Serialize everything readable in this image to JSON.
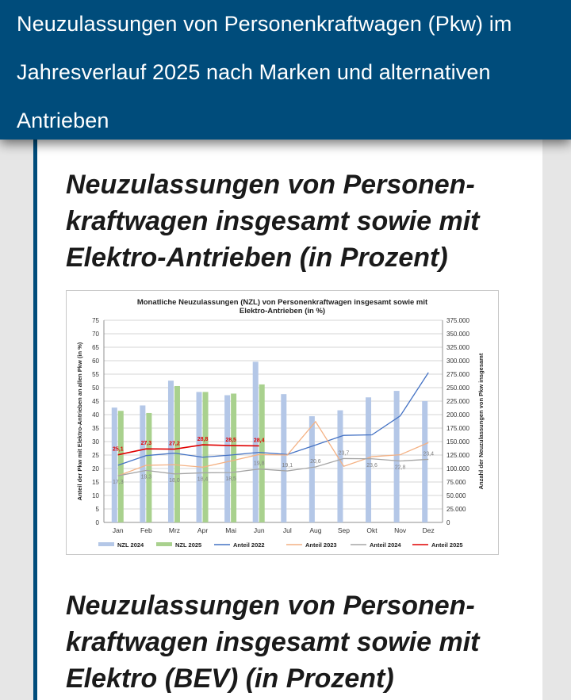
{
  "header": {
    "title": "Neuzulassungen von Personenkraftwagen (Pkw) im Jahresverlauf 2025 nach Marken und alternativen Antrieben"
  },
  "sections": [
    {
      "title_lines": [
        "Neuzulassungen von Personen-",
        "kraftwagen insgesamt sowie mit",
        "Elektro-Antrieben (in Prozent)"
      ]
    },
    {
      "title_lines": [
        "Neuzulassungen von Personen-",
        "kraftwagen insgesamt sowie mit",
        "Elektro (BEV) (in Prozent)"
      ]
    }
  ],
  "colors": {
    "header_bg": "#004c7b",
    "nzl_2024": "#b4c7e7",
    "nzl_2025": "#a9d18e",
    "anteil_2022": "#4472c4",
    "anteil_2023": "#f4b183",
    "anteil_2024": "#a5a5a5",
    "anteil_2025": "#e00000"
  },
  "chart_data": {
    "type": "bar",
    "title_lines": [
      "Monatliche Neuzulassungen  (NZL)  von Personenkraftwagen insgesamt sowie mit",
      "Elektro-Antrieben  (in %)"
    ],
    "categories": [
      "Jan",
      "Feb",
      "Mrz",
      "Apr",
      "Mai",
      "Jun",
      "Jul",
      "Aug",
      "Sep",
      "Okt",
      "Nov",
      "Dez"
    ],
    "ylabel_left": "Anteil der Pkw mit Elektro-Antrieben an allen Pkw (in %)",
    "ylabel_right": "Anzahl der Neuzulassungen von Pkw insgesamt",
    "ylim_left": [
      0,
      75
    ],
    "yticks_left": [
      "0",
      "5",
      "10",
      "15",
      "20",
      "25",
      "30",
      "35",
      "40",
      "45",
      "50",
      "55",
      "60",
      "65",
      "70",
      "75"
    ],
    "ylim_right": [
      0,
      375000
    ],
    "yticks_right": [
      "0",
      "25.000",
      "50.000",
      "75.000",
      "100.000",
      "125.000",
      "150.000",
      "175.000",
      "200.000",
      "225.000",
      "250.000",
      "275.000",
      "300.000",
      "325.000",
      "350.000",
      "375.000"
    ],
    "grid": true,
    "legend": "bottom",
    "bar_series": [
      {
        "name": "NZL 2024",
        "values": [
          213000,
          217000,
          263000,
          242000,
          236000,
          298000,
          238000,
          197000,
          208000,
          232000,
          244000,
          225000
        ]
      },
      {
        "name": "NZL 2025",
        "values": [
          207000,
          203000,
          253000,
          242000,
          239000,
          256000
        ]
      }
    ],
    "line_series": [
      {
        "name": "Anteil 2022",
        "values": [
          21.2,
          24.8,
          25.7,
          24.2,
          25.0,
          26.0,
          25.2,
          28.7,
          32.3,
          32.5,
          39.5,
          55.6
        ]
      },
      {
        "name": "Anteil 2023",
        "values": [
          17.3,
          21.2,
          21.4,
          20.5,
          22.8,
          25.2,
          25.0,
          37.4,
          20.8,
          24.4,
          25.1,
          29.6
        ]
      },
      {
        "name": "Anteil 2024",
        "values": [
          17.3,
          19.3,
          18.0,
          18.4,
          18.5,
          19.8,
          19.1,
          20.6,
          23.7,
          23.6,
          22.8,
          23.4
        ]
      },
      {
        "name": "Anteil 2025",
        "values": [
          25.1,
          27.3,
          27.2,
          28.8,
          28.5,
          28.4
        ]
      }
    ],
    "labels_2025": [
      "25,1",
      "27,3",
      "27,2",
      "28,8",
      "28,5",
      "28,4"
    ],
    "labels_2024": [
      "17,3",
      "19,3",
      "18,0",
      "18,4",
      "18,5",
      "19,8",
      "19,1",
      "20,6",
      "23,7",
      "23,6",
      "22,8",
      "23,4"
    ]
  }
}
